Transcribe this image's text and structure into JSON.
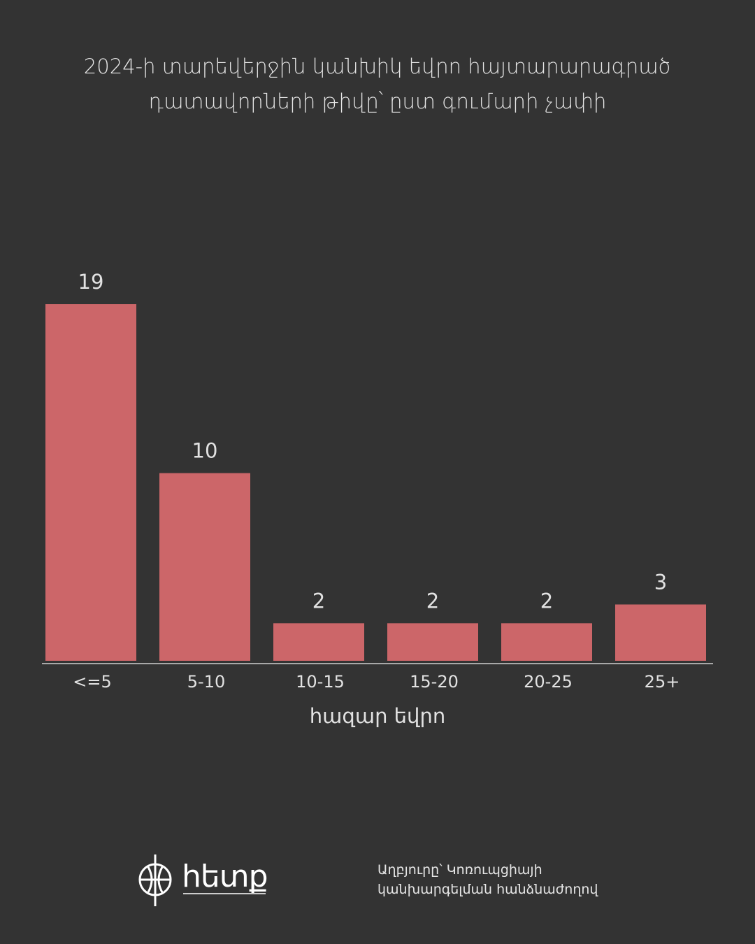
{
  "chart_data": {
    "type": "bar",
    "title": "2024-ի տարեվերջին կանխիկ եվրո հայտարարագրած դատավորների թիվը՝ ըստ գումարի չափի",
    "x_label": "հազար եվրո",
    "categories": [
      "<=5",
      "5-10",
      "10-15",
      "15-20",
      "20-25",
      "25+"
    ],
    "values": [
      19,
      10,
      2,
      2,
      2,
      3
    ],
    "color": "#cc6669",
    "ylim": [
      0,
      19
    ]
  },
  "footer": {
    "logo": "հետք",
    "source": "Աղբյուրը՝ Կոռուպցիայի կանխարգելման հանձնաժողով"
  }
}
